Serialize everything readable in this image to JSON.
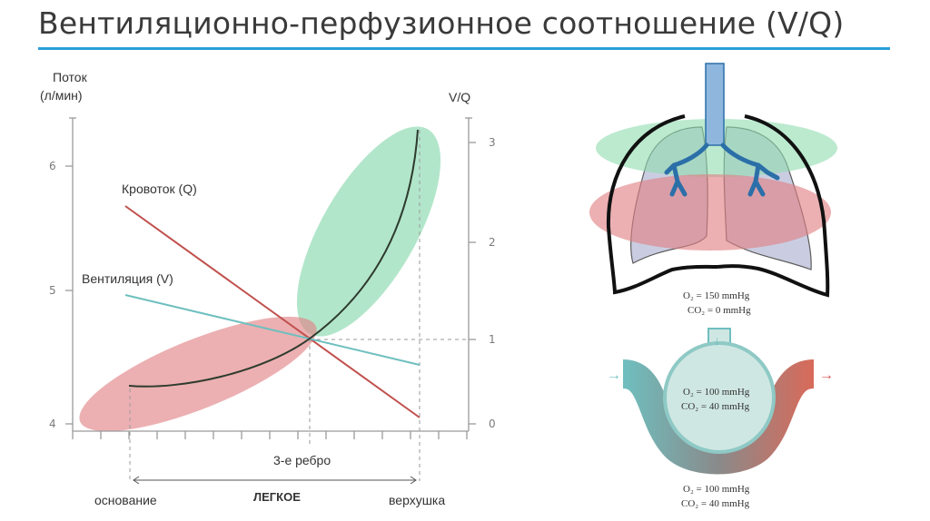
{
  "title": "Вентиляционно-перфузионное соотношение (V/Q)",
  "chart": {
    "left_axis_label_line1": "Поток",
    "left_axis_label_line2": "(л/мин)",
    "right_axis_label": "V/Q",
    "left_ticks": [
      "6",
      "5",
      "4"
    ],
    "right_ticks": [
      "3",
      "2",
      "1",
      "0"
    ],
    "blood_flow_label": "Кровоток (Q)",
    "ventilation_label": "Вентиляция (V)",
    "rib_label": "3-е ребро",
    "base_label": "основание",
    "lung_label": "ЛЕГКОЕ",
    "apex_label": "верхушка"
  },
  "colors": {
    "accent_rule": "#2aa0d8",
    "blood_flow": "#c0504d",
    "ventilation": "#6fbfbf",
    "vq_curve": "#2e3b2e",
    "green_region": "#7fd6a6",
    "red_region": "#e07f82"
  },
  "alveolus": {
    "inspired_o2": "O₂ = 150 mmHg",
    "inspired_co2": "CO₂ = 0 mmHg",
    "alveolar_o2": "O₂ = 100 mmHg",
    "alveolar_co2": "CO₂ = 40 mmHg",
    "capillary_o2": "O₂ = 100 mmHg",
    "capillary_co2": "CO₂ = 40 mmHg"
  }
}
